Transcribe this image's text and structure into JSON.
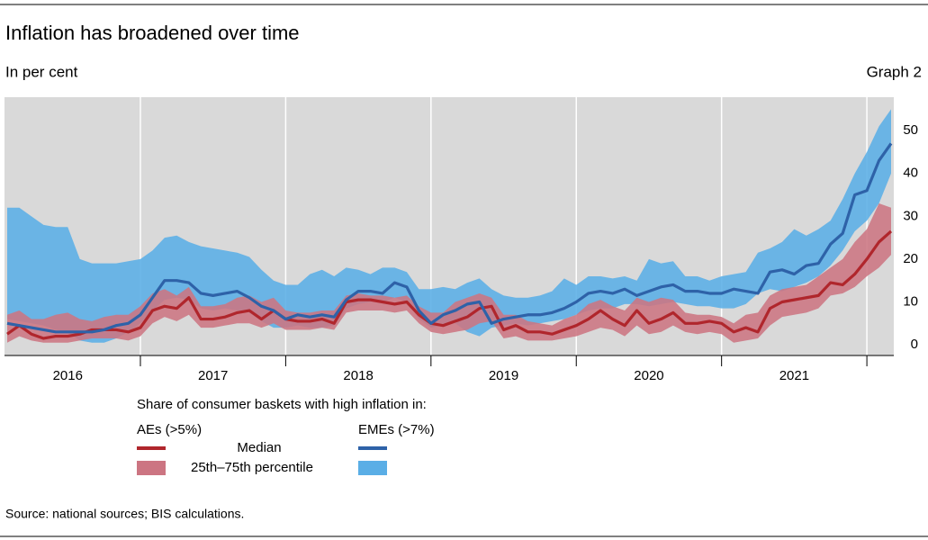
{
  "chart_data": {
    "type": "band-line",
    "title": "Inflation has broadened over time",
    "subtitle": "In per cent",
    "graph_label": "Graph 2",
    "source": "Source: national sources; BIS calculations.",
    "ylim": [
      -2.5,
      57.8
    ],
    "yticks": [
      0,
      10,
      20,
      30,
      40,
      50
    ],
    "xlim": [
      "2016-02",
      "2022-03"
    ],
    "xticks": [
      "2017-01",
      "2018-01",
      "2019-01",
      "2020-01",
      "2021-01",
      "2022-01"
    ],
    "x_labels": [
      {
        "value": "2016-07",
        "label": "2016"
      },
      {
        "value": "2017-07",
        "label": "2017"
      },
      {
        "value": "2018-07",
        "label": "2018"
      },
      {
        "value": "2019-07",
        "label": "2019"
      },
      {
        "value": "2020-07",
        "label": "2020"
      },
      {
        "value": "2021-07",
        "label": "2021"
      }
    ],
    "x": [
      "2016-02",
      "2016-03",
      "2016-04",
      "2016-05",
      "2016-06",
      "2016-07",
      "2016-08",
      "2016-09",
      "2016-10",
      "2016-11",
      "2016-12",
      "2017-01",
      "2017-02",
      "2017-03",
      "2017-04",
      "2017-05",
      "2017-06",
      "2017-07",
      "2017-08",
      "2017-09",
      "2017-10",
      "2017-11",
      "2017-12",
      "2018-01",
      "2018-02",
      "2018-03",
      "2018-04",
      "2018-05",
      "2018-06",
      "2018-07",
      "2018-08",
      "2018-09",
      "2018-10",
      "2018-11",
      "2018-12",
      "2019-01",
      "2019-02",
      "2019-03",
      "2019-04",
      "2019-05",
      "2019-06",
      "2019-07",
      "2019-08",
      "2019-09",
      "2019-10",
      "2019-11",
      "2019-12",
      "2020-01",
      "2020-02",
      "2020-03",
      "2020-04",
      "2020-05",
      "2020-06",
      "2020-07",
      "2020-08",
      "2020-09",
      "2020-10",
      "2020-11",
      "2020-12",
      "2021-01",
      "2021-02",
      "2021-03",
      "2021-04",
      "2021-05",
      "2021-06",
      "2021-07",
      "2021-08",
      "2021-09",
      "2021-10",
      "2021-11",
      "2021-12",
      "2022-01",
      "2022-02",
      "2022-03"
    ],
    "legend": {
      "title": "Share of consumer baskets with high inflation in:",
      "median_label": "Median",
      "band_label": "25th–75th percentile"
    },
    "groups": [
      {
        "name": "EMEs (>7%)",
        "line_color": "#2e62a8",
        "band_color": "#5aaee6",
        "median": [
          5,
          4.5,
          4,
          3.5,
          3,
          3,
          3,
          3,
          3.5,
          4.5,
          5,
          7,
          11,
          15,
          15,
          14.5,
          12,
          11.5,
          12,
          12.5,
          11,
          9,
          8,
          6,
          7,
          6.5,
          7,
          6.5,
          10.5,
          12.5,
          12.5,
          12,
          14.5,
          13.5,
          8,
          5,
          7,
          8,
          9.5,
          10,
          5,
          6,
          6.5,
          7,
          7,
          7.5,
          8.5,
          10,
          12,
          12.5,
          12,
          13,
          11.5,
          12.5,
          13.5,
          14,
          12.5,
          12.5,
          12,
          12,
          13,
          12.5,
          12,
          17,
          17.5,
          16.5,
          18.5,
          19,
          23.5,
          26,
          35,
          36,
          43,
          47
        ],
        "high": [
          32,
          32,
          30,
          28,
          27.5,
          27.5,
          20,
          19,
          19,
          19,
          19.5,
          20,
          22,
          25,
          25.5,
          24,
          23,
          22.5,
          22,
          21.5,
          20.5,
          17.5,
          15,
          14,
          14,
          16.5,
          17.5,
          16,
          18,
          17.5,
          16.5,
          18,
          18,
          17,
          13,
          13,
          13.5,
          13,
          14.5,
          15.5,
          13,
          11.5,
          11,
          11,
          11.5,
          12.5,
          15.5,
          14,
          16,
          16,
          15.5,
          16,
          15,
          20,
          19,
          19.5,
          16,
          16,
          15,
          16,
          16.5,
          17,
          21.5,
          22.5,
          24,
          27,
          25.5,
          27,
          29,
          34,
          40,
          45,
          51,
          55
        ],
        "low": [
          6,
          5.5,
          5,
          4.5,
          3.5,
          3,
          1,
          0.5,
          0.5,
          1.5,
          3,
          5,
          8,
          10.5,
          11,
          10.5,
          8.5,
          8,
          8.5,
          8,
          7.5,
          5.5,
          4,
          4,
          4.5,
          4,
          4,
          4.5,
          8.5,
          9.5,
          10,
          10,
          11,
          10,
          6,
          4,
          4.5,
          5,
          3,
          2,
          4,
          4.5,
          5,
          4.5,
          5,
          5.5,
          6,
          7,
          8,
          8.5,
          8.5,
          9.5,
          9.5,
          9,
          9.5,
          10,
          9.5,
          9,
          9,
          8.5,
          8.5,
          9.5,
          12,
          13,
          12.5,
          13.5,
          14.5,
          16,
          18.5,
          22,
          26.5,
          29,
          33,
          40
        ]
      },
      {
        "name": "AEs (>5%)",
        "line_color": "#b0262c",
        "band_color": "#cc7582",
        "median": [
          2.5,
          4.5,
          2.5,
          1.5,
          2,
          2,
          2.5,
          3.5,
          3.5,
          3.5,
          3,
          4,
          8,
          9,
          8.5,
          11,
          6,
          6,
          6.5,
          7.5,
          8,
          6,
          8,
          6,
          5.5,
          5.5,
          6,
          5,
          10,
          10.5,
          10.5,
          10,
          9.5,
          10,
          7,
          5,
          4.5,
          5.5,
          6.5,
          8.5,
          9,
          3.5,
          4.5,
          3,
          3,
          2.5,
          3.5,
          4.5,
          6,
          8,
          6,
          4.5,
          8,
          5,
          6,
          7.5,
          5,
          5,
          5.5,
          5,
          3,
          4,
          3,
          8.5,
          10,
          10.5,
          11,
          11.5,
          14.5,
          14,
          16.5,
          20,
          24,
          26.5
        ],
        "high": [
          7,
          8,
          6,
          6,
          7,
          7.5,
          6,
          5.5,
          6.5,
          7,
          7,
          9,
          12,
          13,
          11.5,
          13.5,
          9,
          9,
          9.5,
          11,
          11.5,
          10,
          11,
          8,
          7.5,
          7.5,
          8,
          8,
          11.5,
          12,
          11.5,
          11.5,
          11,
          11.5,
          9,
          7.5,
          7.5,
          10,
          11,
          12,
          11,
          7,
          7,
          5.5,
          5,
          4.5,
          6,
          7,
          9.5,
          10.5,
          9,
          8,
          11,
          10,
          11,
          10.5,
          7.5,
          7,
          7,
          6.5,
          5,
          7,
          7.5,
          11.5,
          13,
          13.5,
          14,
          16,
          18,
          20,
          24,
          27,
          33,
          32
        ],
        "low": [
          0.5,
          2,
          1,
          0.5,
          0.5,
          0.5,
          1,
          1.5,
          1.5,
          1.5,
          1,
          2,
          5,
          6.5,
          5.5,
          7,
          4,
          4,
          4.5,
          5,
          5,
          4,
          5,
          3.5,
          3.5,
          3.5,
          4,
          3.5,
          7.5,
          8,
          8,
          8,
          7.5,
          8,
          5,
          3,
          2.5,
          3,
          3.5,
          5,
          5.5,
          1.5,
          2,
          1,
          1,
          1,
          1.5,
          2,
          3,
          4,
          3.5,
          2,
          4.5,
          2.5,
          3,
          4.5,
          3,
          2.5,
          3,
          2.5,
          0.5,
          1,
          1.5,
          4.5,
          6.5,
          7,
          7.5,
          8.5,
          11.5,
          12,
          13.5,
          16,
          18,
          21
        ]
      }
    ]
  }
}
